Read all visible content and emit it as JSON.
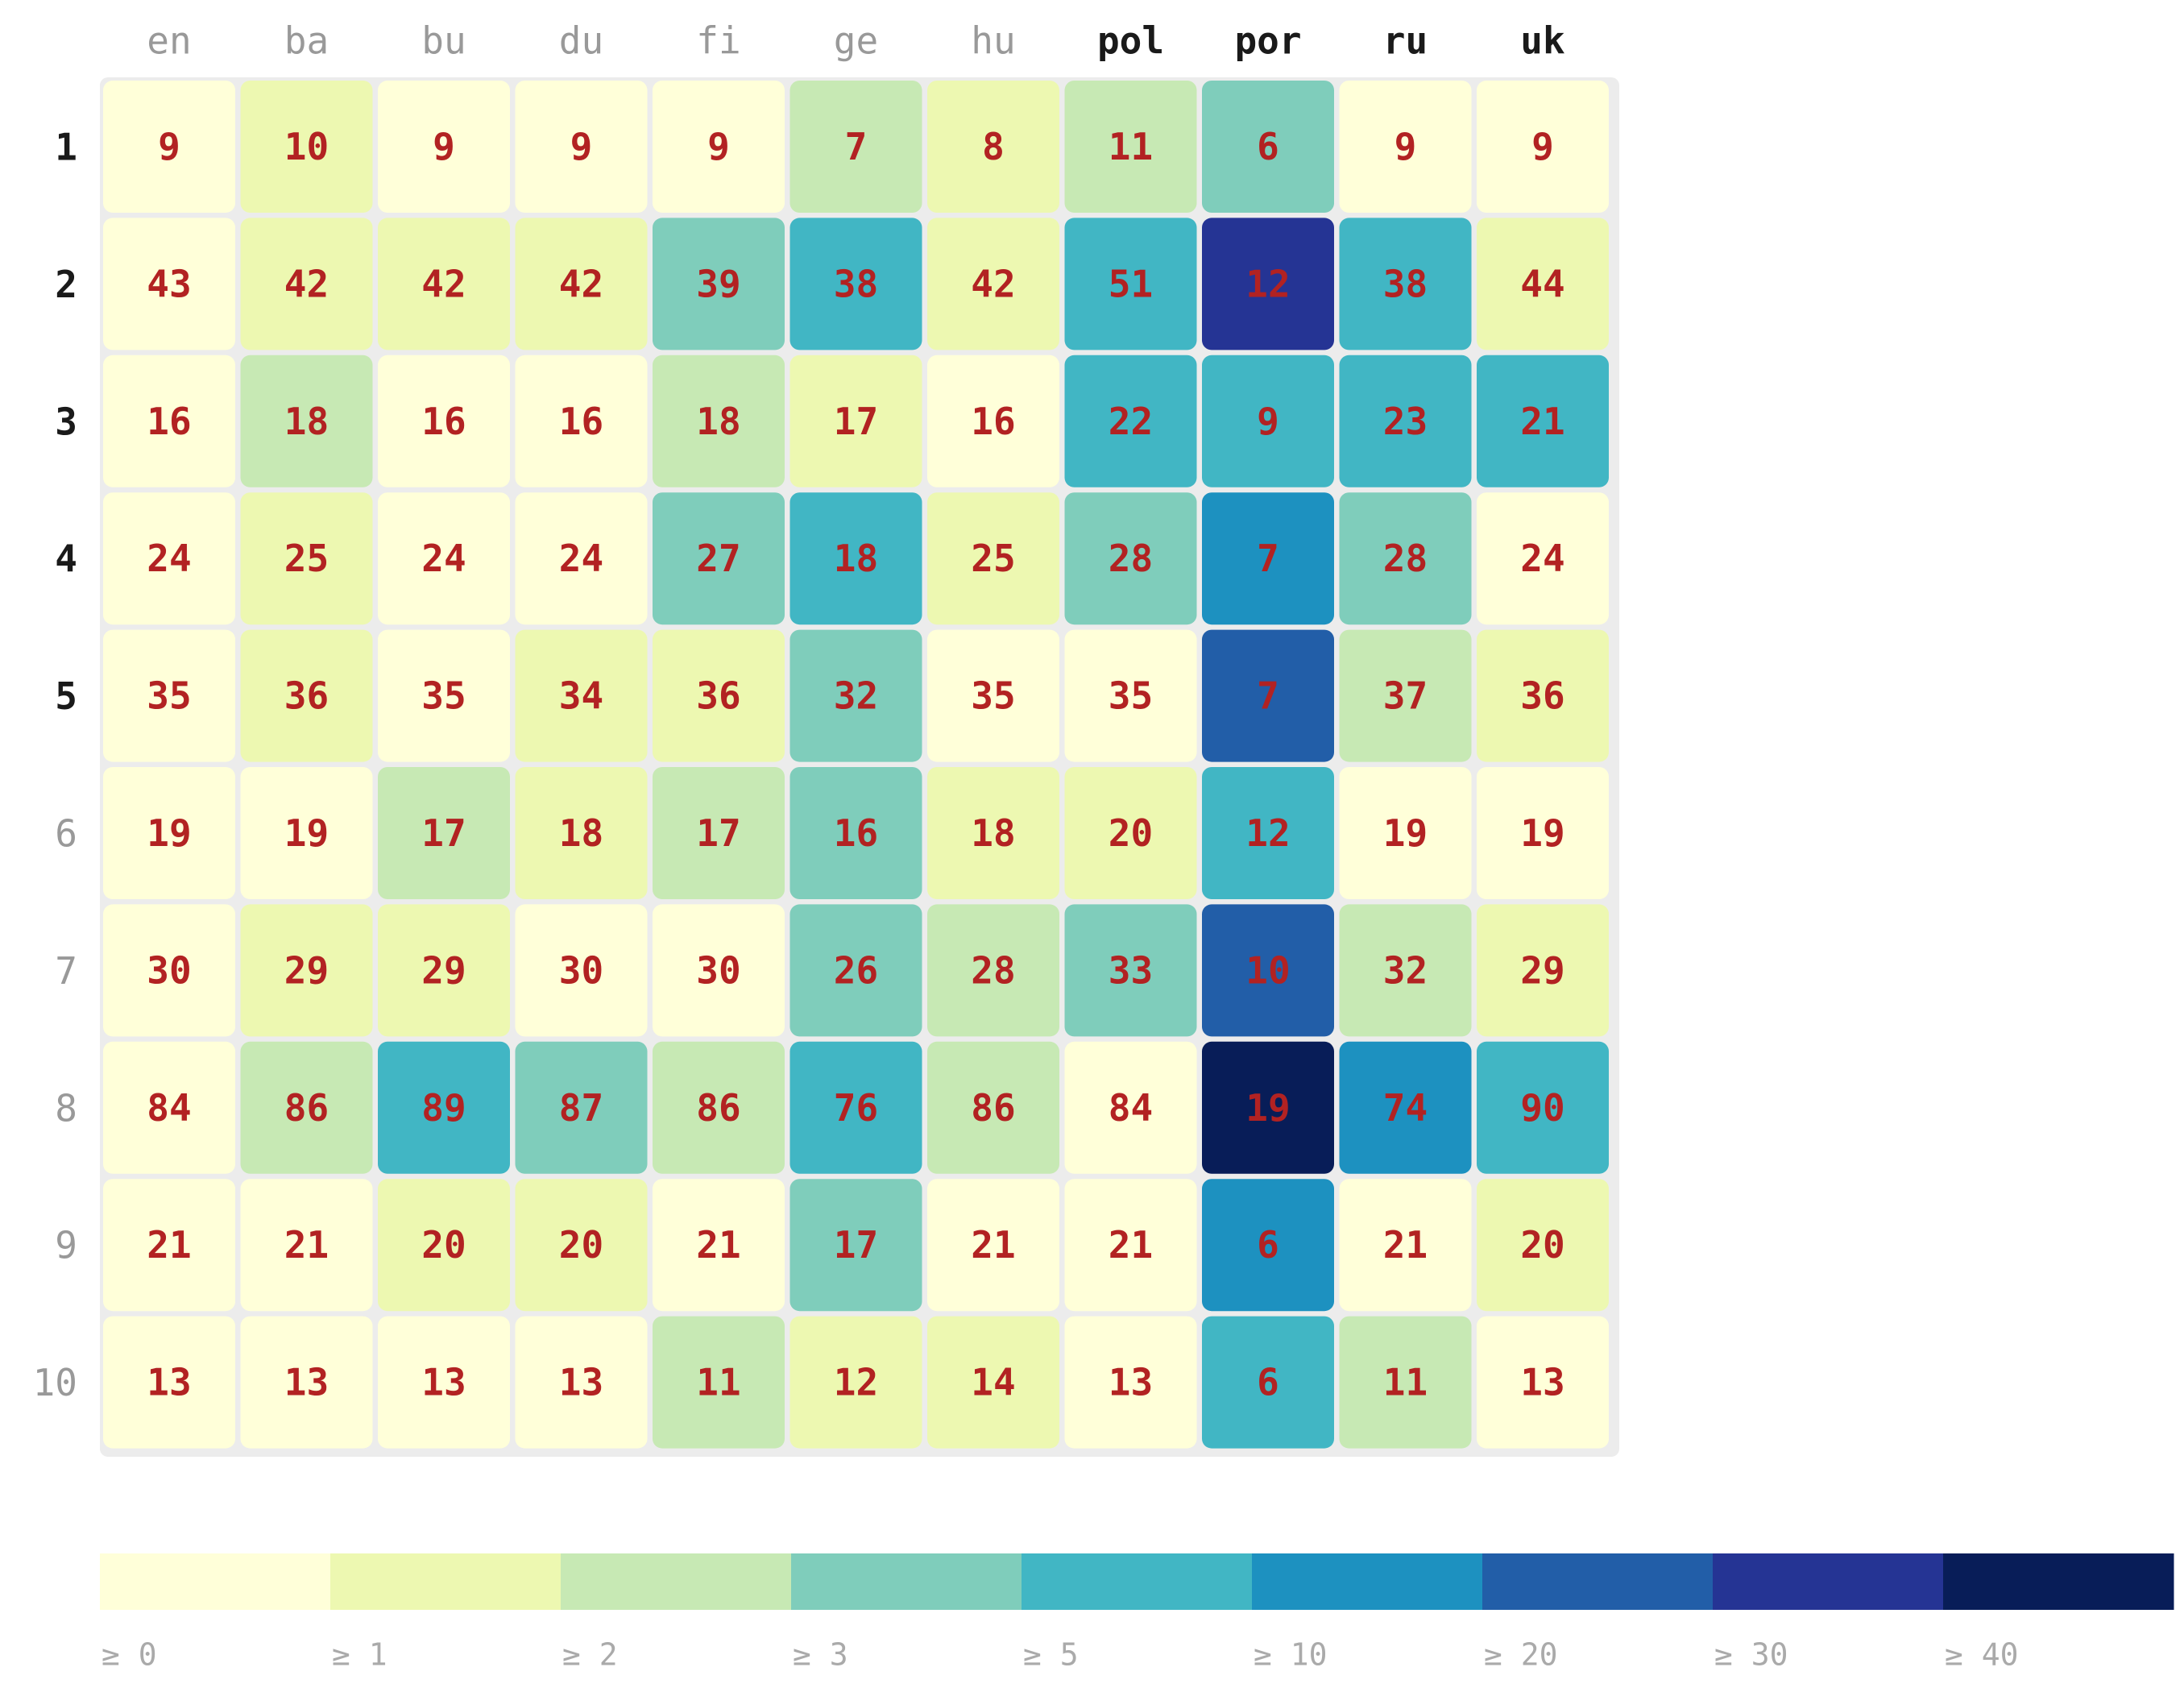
{
  "chart_data": {
    "type": "heatmap",
    "columns": [
      {
        "label": "en",
        "bold": false
      },
      {
        "label": "ba",
        "bold": false
      },
      {
        "label": "bu",
        "bold": false
      },
      {
        "label": "du",
        "bold": false
      },
      {
        "label": "fi",
        "bold": false
      },
      {
        "label": "ge",
        "bold": false
      },
      {
        "label": "hu",
        "bold": false
      },
      {
        "label": "pol",
        "bold": true
      },
      {
        "label": "por",
        "bold": true
      },
      {
        "label": "ru",
        "bold": true
      },
      {
        "label": "uk",
        "bold": true
      }
    ],
    "rows": [
      {
        "label": "1",
        "bold": true
      },
      {
        "label": "2",
        "bold": true
      },
      {
        "label": "3",
        "bold": true
      },
      {
        "label": "4",
        "bold": true
      },
      {
        "label": "5",
        "bold": true
      },
      {
        "label": "6",
        "bold": false
      },
      {
        "label": "7",
        "bold": false
      },
      {
        "label": "8",
        "bold": false
      },
      {
        "label": "9",
        "bold": false
      },
      {
        "label": "10",
        "bold": false
      }
    ],
    "values": [
      [
        9,
        10,
        9,
        9,
        9,
        7,
        8,
        11,
        6,
        9,
        9
      ],
      [
        43,
        42,
        42,
        42,
        39,
        38,
        42,
        51,
        12,
        38,
        44
      ],
      [
        16,
        18,
        16,
        16,
        18,
        17,
        16,
        22,
        9,
        23,
        21
      ],
      [
        24,
        25,
        24,
        24,
        27,
        18,
        25,
        28,
        7,
        28,
        24
      ],
      [
        35,
        36,
        35,
        34,
        36,
        32,
        35,
        35,
        7,
        37,
        36
      ],
      [
        19,
        19,
        17,
        18,
        17,
        16,
        18,
        20,
        12,
        19,
        19
      ],
      [
        30,
        29,
        29,
        30,
        30,
        26,
        28,
        33,
        10,
        32,
        29
      ],
      [
        84,
        86,
        89,
        87,
        86,
        76,
        86,
        84,
        19,
        74,
        90
      ],
      [
        21,
        21,
        20,
        20,
        21,
        17,
        21,
        21,
        6,
        21,
        20
      ],
      [
        13,
        13,
        13,
        13,
        11,
        12,
        14,
        13,
        6,
        11,
        13
      ]
    ],
    "color_bins": [
      [
        0,
        1,
        0,
        0,
        0,
        2,
        1,
        2,
        3,
        0,
        0
      ],
      [
        0,
        1,
        1,
        1,
        3,
        4,
        1,
        4,
        7,
        4,
        1
      ],
      [
        0,
        2,
        0,
        0,
        2,
        1,
        0,
        4,
        4,
        4,
        4
      ],
      [
        0,
        1,
        0,
        0,
        3,
        4,
        1,
        3,
        5,
        3,
        0
      ],
      [
        0,
        1,
        0,
        1,
        1,
        3,
        0,
        0,
        6,
        2,
        1
      ],
      [
        0,
        0,
        2,
        1,
        2,
        3,
        1,
        1,
        4,
        0,
        0
      ],
      [
        0,
        1,
        1,
        0,
        0,
        3,
        2,
        3,
        6,
        2,
        1
      ],
      [
        0,
        2,
        4,
        3,
        2,
        4,
        2,
        0,
        8,
        5,
        4
      ],
      [
        0,
        0,
        1,
        1,
        0,
        3,
        0,
        0,
        5,
        0,
        1
      ],
      [
        0,
        0,
        0,
        0,
        2,
        1,
        1,
        0,
        4,
        2,
        0
      ]
    ],
    "legend": {
      "placement": "bottom",
      "bins": [
        {
          "label": "≥ 0",
          "color": "#ffffd9"
        },
        {
          "label": "≥ 1",
          "color": "#edf8b1"
        },
        {
          "label": "≥ 2",
          "color": "#c7e9b4"
        },
        {
          "label": "≥ 3",
          "color": "#7fcdbb"
        },
        {
          "label": "≥ 5",
          "color": "#41b6c4"
        },
        {
          "label": "≥ 10",
          "color": "#1d91c0"
        },
        {
          "label": "≥ 20",
          "color": "#225ea8"
        },
        {
          "label": "≥ 30",
          "color": "#253494"
        },
        {
          "label": "≥ 40",
          "color": "#081d58"
        }
      ]
    }
  }
}
